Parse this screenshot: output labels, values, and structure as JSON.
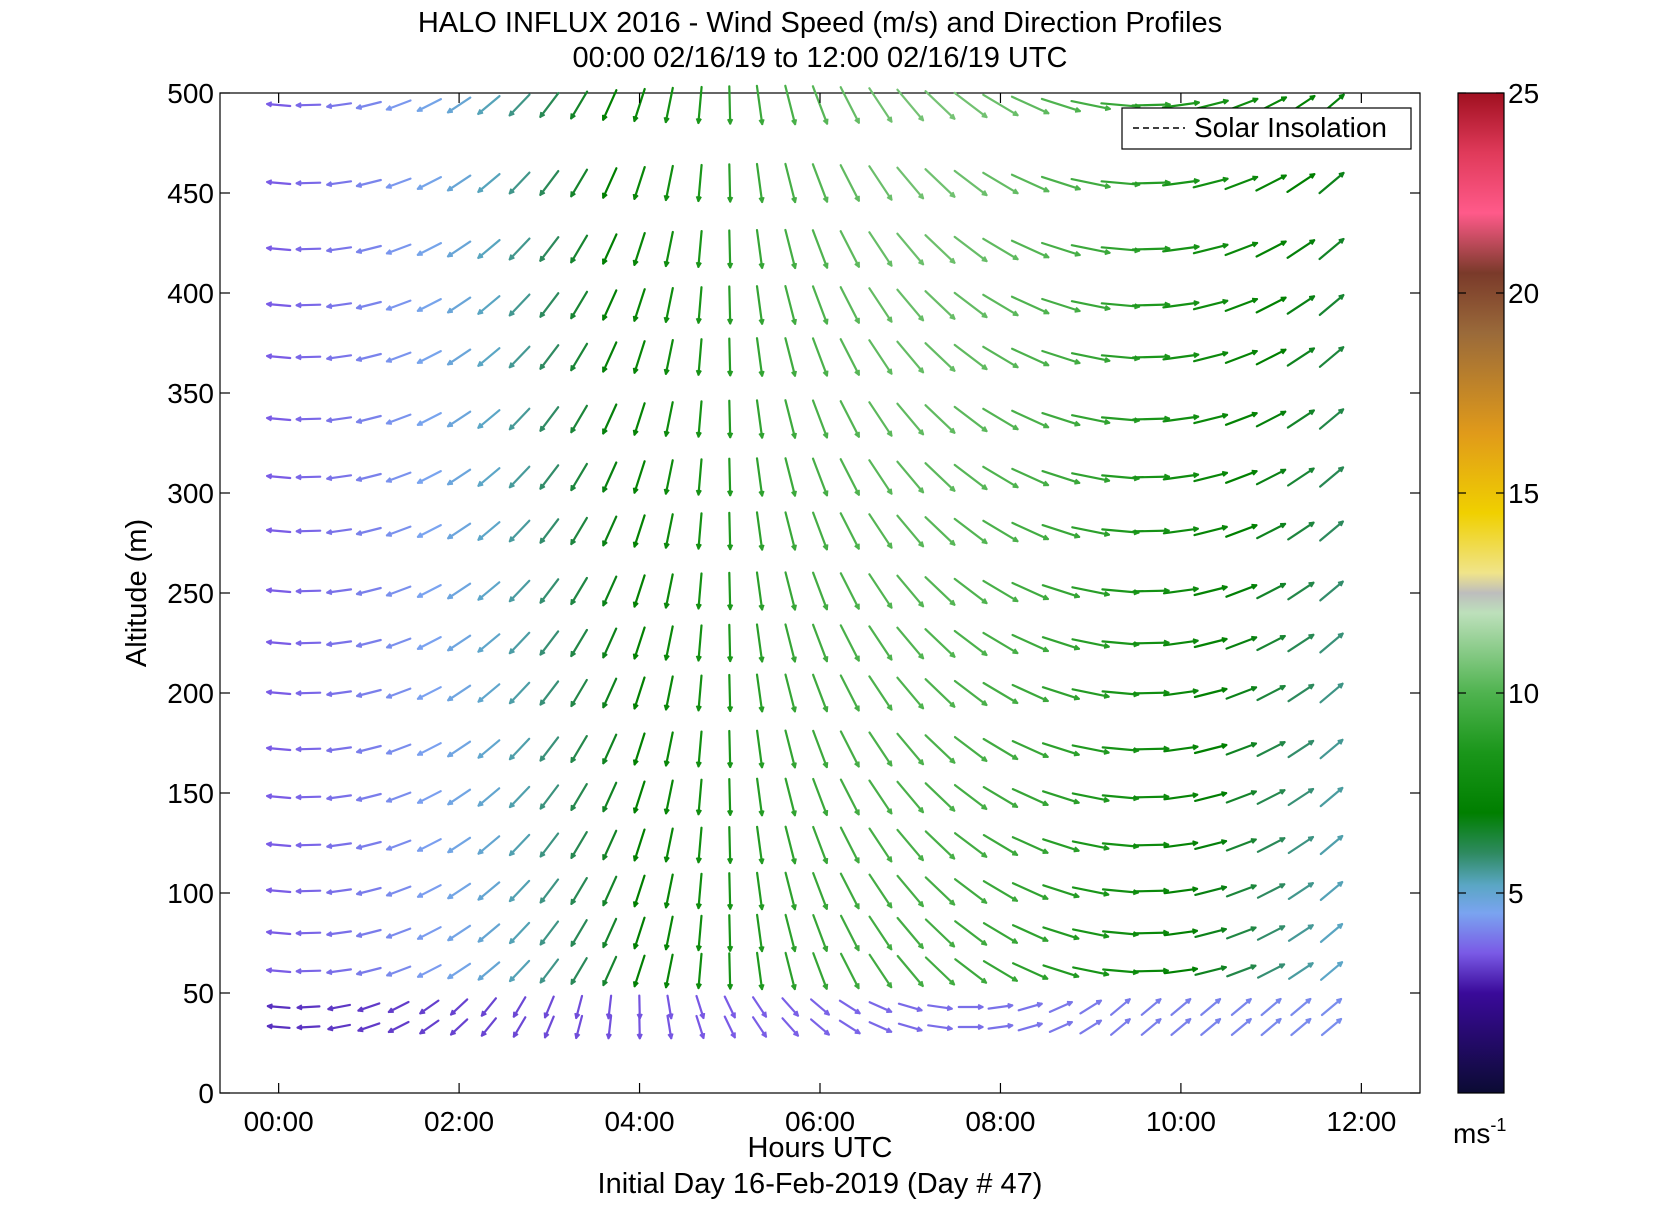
{
  "chart_data": {
    "type": "quiver",
    "title": "HALO INFLUX 2016 - Wind Speed (m/s) and Direction Profiles",
    "subtitle": "00:00 02/16/19 to 12:00 02/16/19  UTC",
    "xlabel": "Hours UTC",
    "footnote": "Initial Day 16-Feb-2019 (Day # 47)",
    "ylabel": "Altitude (m)",
    "xlim": [
      -0.65,
      12.65
    ],
    "ylim": [
      0,
      500
    ],
    "x_ticks": [
      0,
      2,
      4,
      6,
      8,
      10,
      12
    ],
    "x_tick_labels": [
      "00:00",
      "02:00",
      "04:00",
      "06:00",
      "08:00",
      "10:00",
      "12:00"
    ],
    "y_ticks": [
      0,
      50,
      100,
      150,
      200,
      250,
      300,
      350,
      400,
      450,
      500
    ],
    "y_tick_labels": [
      "0",
      "50",
      "100",
      "150",
      "200",
      "250",
      "300",
      "350",
      "400",
      "450",
      "500"
    ],
    "legend": {
      "entries": [
        "Solar Insolation"
      ],
      "placement": "top-right",
      "line_style": "dashed"
    },
    "times_hours": [
      0,
      0.33,
      0.67,
      1.0,
      1.33,
      1.67,
      2.0,
      2.33,
      2.67,
      3.0,
      3.33,
      3.67,
      4.0,
      4.33,
      4.67,
      5.0,
      5.33,
      5.67,
      6.0,
      6.33,
      6.67,
      7.0,
      7.33,
      7.67,
      8.0,
      8.33,
      8.67,
      9.0,
      9.33,
      9.67,
      10.0,
      10.33,
      10.67,
      11.0,
      11.33,
      11.67
    ],
    "altitudes_m": [
      33,
      43,
      61,
      80,
      101,
      124,
      148,
      172,
      200,
      225,
      251,
      281,
      308,
      337,
      368,
      394,
      422,
      455,
      494
    ],
    "wind_model": {
      "note": "direction the arrow points, degrees clockwise from north; speed in m/s",
      "direction_start_deg": 275,
      "direction_turn_deg": 225,
      "surface_layer_below_m": 60,
      "speed_start": 3.2,
      "speed_peak": 9.5,
      "speed_end_top": 11.5,
      "speed_near_surface": 3.0
    },
    "colorbar": {
      "label": "ms",
      "label_exponent": "-1",
      "range": [
        0,
        25
      ],
      "ticks": [
        5,
        10,
        15,
        20,
        25
      ],
      "tick_labels": [
        "5",
        "10",
        "15",
        "20",
        "25"
      ],
      "stops": [
        {
          "v": 0,
          "c": "#0b0b33"
        },
        {
          "v": 2.5,
          "c": "#3a0a9a"
        },
        {
          "v": 3.5,
          "c": "#7a5ae6"
        },
        {
          "v": 4.5,
          "c": "#7aa4f0"
        },
        {
          "v": 5.2,
          "c": "#5aa6c4"
        },
        {
          "v": 6.0,
          "c": "#2e8a60"
        },
        {
          "v": 7.0,
          "c": "#007f00"
        },
        {
          "v": 8.5,
          "c": "#1a961a"
        },
        {
          "v": 10.0,
          "c": "#4fb34f"
        },
        {
          "v": 12.0,
          "c": "#bde0bb"
        },
        {
          "v": 12.5,
          "c": "#bdbdbd"
        },
        {
          "v": 13.0,
          "c": "#f0e48a"
        },
        {
          "v": 14.5,
          "c": "#f0d000"
        },
        {
          "v": 16.5,
          "c": "#e09a1a"
        },
        {
          "v": 19.0,
          "c": "#9a6a3a"
        },
        {
          "v": 20.5,
          "c": "#7a3a2a"
        },
        {
          "v": 22.0,
          "c": "#ff5a8a"
        },
        {
          "v": 23.5,
          "c": "#e03a5a"
        },
        {
          "v": 25.0,
          "c": "#a01020"
        }
      ]
    }
  }
}
